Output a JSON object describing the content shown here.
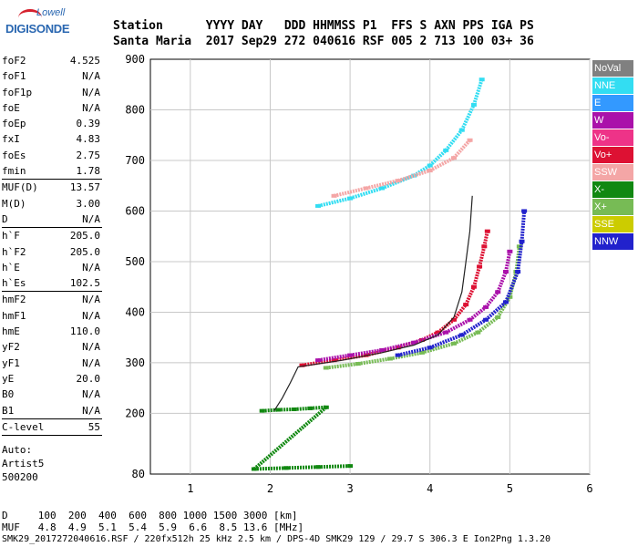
{
  "logo": {
    "line1": "Lowell",
    "line2": "DIGISONDE"
  },
  "header": {
    "labels": "Station      YYYY DAY   DDD HHMMSS P1  FFS S AXN PPS IGA PS",
    "values": "Santa Maria  2017 Sep29 272 040616 RSF 005 2 713 100 03+ 36"
  },
  "params": [
    {
      "k": "foF2",
      "v": "4.525"
    },
    {
      "k": "foF1",
      "v": "N/A"
    },
    {
      "k": "foF1p",
      "v": "N/A"
    },
    {
      "k": "foE",
      "v": "N/A"
    },
    {
      "k": "foEp",
      "v": "0.39"
    },
    {
      "k": "fxI",
      "v": "4.83"
    },
    {
      "k": "foEs",
      "v": "2.75"
    },
    {
      "k": "fmin",
      "v": "1.78",
      "sep": true
    },
    {
      "k": "MUF(D)",
      "v": "13.57"
    },
    {
      "k": "M(D)",
      "v": "3.00"
    },
    {
      "k": "D",
      "v": "N/A",
      "sep": true
    },
    {
      "k": "h`F",
      "v": "205.0"
    },
    {
      "k": "h`F2",
      "v": "205.0"
    },
    {
      "k": "h`E",
      "v": "N/A"
    },
    {
      "k": "h`Es",
      "v": "102.5",
      "sep": true
    },
    {
      "k": "hmF2",
      "v": "N/A"
    },
    {
      "k": "hmF1",
      "v": "N/A"
    },
    {
      "k": "hmE",
      "v": "110.0"
    },
    {
      "k": "yF2",
      "v": "N/A"
    },
    {
      "k": "yF1",
      "v": "N/A"
    },
    {
      "k": "yE",
      "v": "20.0"
    },
    {
      "k": "B0",
      "v": "N/A"
    },
    {
      "k": "B1",
      "v": "N/A",
      "sep": true
    },
    {
      "k": "C-level",
      "v": "55",
      "sep": true
    }
  ],
  "auto": {
    "l1": "Auto:",
    "l2": "Artist5",
    "l3": "500200"
  },
  "legend": [
    {
      "label": "NoVal",
      "color": "#808080"
    },
    {
      "label": "NNE",
      "color": "#33ddf2"
    },
    {
      "label": "E",
      "color": "#3399ff"
    },
    {
      "label": "W",
      "color": "#aa11aa"
    },
    {
      "label": "Vo-",
      "color": "#ee3388"
    },
    {
      "label": "Vo+",
      "color": "#dd1133"
    },
    {
      "label": "SSW",
      "color": "#f4a6a6"
    },
    {
      "label": "X-",
      "color": "#118811"
    },
    {
      "label": "X+",
      "color": "#77bb55"
    },
    {
      "label": "SSE",
      "color": "#cccc00"
    },
    {
      "label": "NNW",
      "color": "#2222cc"
    }
  ],
  "footer": {
    "line1": "D     100  200  400  600  800 1000 1500 3000 [km]",
    "line2": "MUF   4.8  4.9  5.1  5.4  5.9  6.6  8.5 13.6 [MHz]",
    "line3": "SMK29_2017272040616.RSF / 220fx512h 25 kHz 2.5 km / DPS-4D SMK29 129 / 29.7 S 306.3 E Ion2Png 1.3.20"
  },
  "chart_data": {
    "type": "scatter",
    "xlim": [
      0.5,
      6
    ],
    "ylim": [
      80,
      900
    ],
    "xticks": [
      1,
      2,
      3,
      4,
      5,
      6
    ],
    "yticks": [
      80,
      200,
      300,
      400,
      500,
      600,
      700,
      800,
      900
    ],
    "grid": true,
    "series": [
      {
        "name": "Vo+",
        "color": "#dd1133",
        "role": "o-trace F2",
        "points": [
          [
            2.4,
            295
          ],
          [
            2.8,
            305
          ],
          [
            3.2,
            315
          ],
          [
            3.6,
            330
          ],
          [
            3.9,
            345
          ],
          [
            4.1,
            360
          ],
          [
            4.3,
            385
          ],
          [
            4.45,
            415
          ],
          [
            4.55,
            450
          ],
          [
            4.62,
            490
          ],
          [
            4.68,
            530
          ],
          [
            4.72,
            560
          ]
        ]
      },
      {
        "name": "W",
        "color": "#aa11aa",
        "role": "o-trace F2 upper",
        "points": [
          [
            2.6,
            305
          ],
          [
            3.0,
            315
          ],
          [
            3.4,
            325
          ],
          [
            3.8,
            340
          ],
          [
            4.2,
            360
          ],
          [
            4.5,
            385
          ],
          [
            4.7,
            410
          ],
          [
            4.85,
            440
          ],
          [
            4.95,
            480
          ],
          [
            5.0,
            520
          ]
        ]
      },
      {
        "name": "X+",
        "color": "#77bb55",
        "role": "x-trace F2",
        "points": [
          [
            2.7,
            290
          ],
          [
            3.1,
            298
          ],
          [
            3.5,
            308
          ],
          [
            3.9,
            320
          ],
          [
            4.3,
            338
          ],
          [
            4.6,
            360
          ],
          [
            4.85,
            390
          ],
          [
            5.0,
            430
          ],
          [
            5.08,
            480
          ],
          [
            5.12,
            530
          ]
        ]
      },
      {
        "name": "NNW",
        "color": "#2222cc",
        "role": "x-trace upper",
        "points": [
          [
            3.6,
            315
          ],
          [
            4.0,
            330
          ],
          [
            4.4,
            355
          ],
          [
            4.7,
            385
          ],
          [
            4.95,
            420
          ],
          [
            5.1,
            480
          ],
          [
            5.15,
            540
          ],
          [
            5.18,
            600
          ]
        ]
      },
      {
        "name": "NNE",
        "color": "#33ddf2",
        "role": "multi-hop echoes",
        "points": [
          [
            2.6,
            610
          ],
          [
            3.0,
            625
          ],
          [
            3.4,
            645
          ],
          [
            3.8,
            670
          ],
          [
            4.0,
            690
          ],
          [
            4.2,
            720
          ],
          [
            4.4,
            760
          ],
          [
            4.55,
            810
          ],
          [
            4.65,
            860
          ]
        ]
      },
      {
        "name": "X-",
        "color": "#118811",
        "role": "sporadic E",
        "points": [
          [
            1.9,
            205
          ],
          [
            2.1,
            207
          ],
          [
            2.3,
            208
          ],
          [
            2.5,
            210
          ],
          [
            2.7,
            212
          ],
          [
            1.8,
            90
          ],
          [
            2.2,
            92
          ],
          [
            2.6,
            94
          ],
          [
            3.0,
            96
          ]
        ]
      },
      {
        "name": "SSW",
        "color": "#f4a6a6",
        "role": "multi-hop echoes",
        "points": [
          [
            2.8,
            630
          ],
          [
            3.2,
            645
          ],
          [
            3.6,
            660
          ],
          [
            4.0,
            680
          ],
          [
            4.3,
            705
          ],
          [
            4.5,
            740
          ]
        ]
      }
    ],
    "profile": [
      [
        2.05,
        205
      ],
      [
        2.15,
        230
      ],
      [
        2.25,
        260
      ],
      [
        2.35,
        292
      ],
      [
        2.9,
        305
      ],
      [
        3.4,
        320
      ],
      [
        3.8,
        335
      ],
      [
        4.1,
        355
      ],
      [
        4.3,
        390
      ],
      [
        4.4,
        440
      ],
      [
        4.45,
        500
      ],
      [
        4.5,
        560
      ],
      [
        4.53,
        630
      ]
    ]
  }
}
